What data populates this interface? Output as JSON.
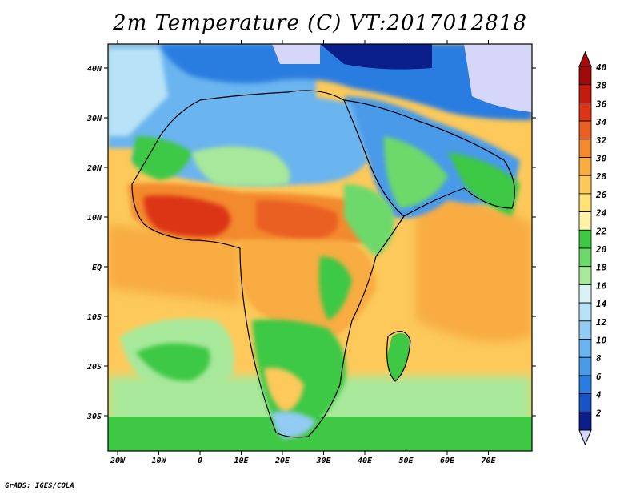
{
  "title": "2m Temperature (C) VT:2017012818",
  "credit": "GrADS: IGES/COLA",
  "map": {
    "lat_ticks": [
      "40N",
      "30N",
      "20N",
      "10N",
      "EQ",
      "10S",
      "20S",
      "30S"
    ],
    "lon_ticks": [
      "20W",
      "10W",
      "0",
      "10E",
      "20E",
      "30E",
      "40E",
      "50E",
      "60E",
      "70E"
    ]
  },
  "colorbar": {
    "labels": [
      "2",
      "4",
      "6",
      "8",
      "10",
      "12",
      "14",
      "16",
      "18",
      "20",
      "22",
      "24",
      "26",
      "28",
      "30",
      "32",
      "34",
      "36",
      "38",
      "40"
    ],
    "colors": [
      "#0b1f8a",
      "#1654c8",
      "#2a7de0",
      "#4a9ae8",
      "#6bb4ef",
      "#92cbf3",
      "#b8e2f7",
      "#d9f3f5",
      "#a7e89a",
      "#6dd96b",
      "#3ec844",
      "#fff3a6",
      "#ffe17a",
      "#fcc95a",
      "#f8ac42",
      "#f38a2e",
      "#ea5f22",
      "#dc3417",
      "#c41a10",
      "#a00a08"
    ],
    "low_color": "#d6d6f8",
    "high_color": "#b00808"
  },
  "colors": {
    "ocean_warm": "#fcc95a",
    "ocean_mid": "#f8ac42",
    "land_green": "#3ec844",
    "desert_blue": "#6bb4ef",
    "hot_orange": "#ea5f22",
    "border": "#000000"
  }
}
